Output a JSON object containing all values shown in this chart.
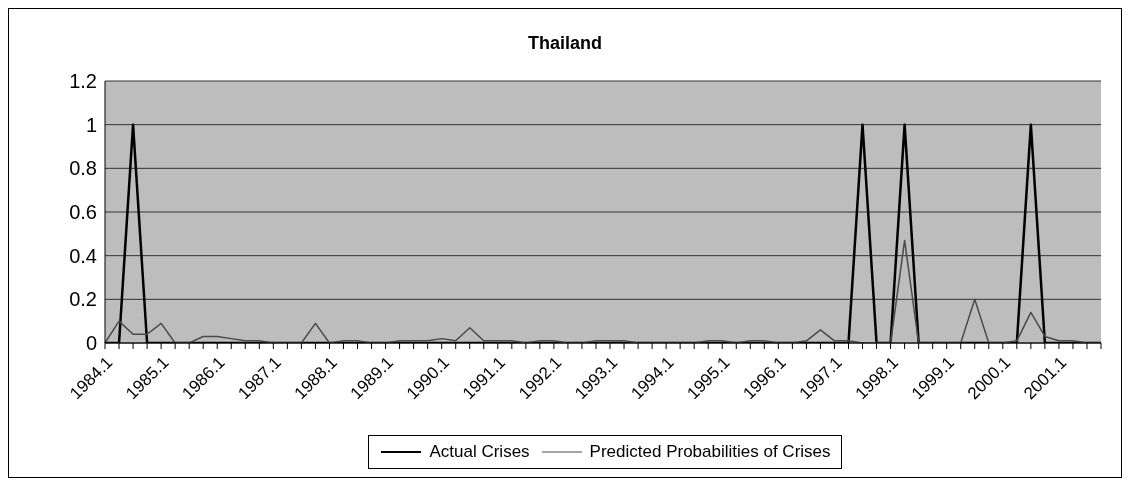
{
  "chart_data": {
    "type": "line",
    "title": "Thailand",
    "categories": [
      "1984.1",
      null,
      null,
      null,
      "1985.1",
      null,
      null,
      null,
      "1986.1",
      null,
      null,
      null,
      "1987.1",
      null,
      null,
      null,
      "1988.1",
      null,
      null,
      null,
      "1989.1",
      null,
      null,
      null,
      "1990.1",
      null,
      null,
      null,
      "1991.1",
      null,
      null,
      null,
      "1992.1",
      null,
      null,
      null,
      "1993.1",
      null,
      null,
      null,
      "1994.1",
      null,
      null,
      null,
      "1995.1",
      null,
      null,
      null,
      "1996.1",
      null,
      null,
      null,
      "1997.1",
      null,
      null,
      null,
      "1998.1",
      null,
      null,
      null,
      "1999.1",
      null,
      null,
      null,
      "2000.1",
      null,
      null,
      null,
      "2001.1",
      null,
      null,
      null
    ],
    "series": [
      {
        "name": "Actual Crises",
        "color": "#000000",
        "values": [
          0,
          0,
          1,
          0,
          0,
          0,
          0,
          0,
          0,
          0,
          0,
          0,
          0,
          0,
          0,
          0,
          0,
          0,
          0,
          0,
          0,
          0,
          0,
          0,
          0,
          0,
          0,
          0,
          0,
          0,
          0,
          0,
          0,
          0,
          0,
          0,
          0,
          0,
          0,
          0,
          0,
          0,
          0,
          0,
          0,
          0,
          0,
          0,
          0,
          0,
          0,
          0,
          0,
          0,
          1,
          0,
          0,
          1,
          0,
          0,
          0,
          0,
          0,
          0,
          0,
          0,
          1,
          0,
          0,
          0,
          0,
          0
        ]
      },
      {
        "name": "Predicted Probabilities of Crises",
        "color": "#4a4a4a",
        "values": [
          0,
          0.1,
          0.04,
          0.04,
          0.09,
          0,
          0,
          0.03,
          0.03,
          0.02,
          0.01,
          0.01,
          0,
          0,
          0,
          0.09,
          0,
          0.01,
          0.01,
          0,
          0,
          0.01,
          0.01,
          0.01,
          0.02,
          0.01,
          0.07,
          0.01,
          0.01,
          0.01,
          0,
          0.01,
          0.01,
          0,
          0,
          0.01,
          0.01,
          0.01,
          0,
          0,
          0,
          0,
          0,
          0.01,
          0.01,
          0,
          0.01,
          0.01,
          0,
          0,
          0.01,
          0.06,
          0.01,
          0.01,
          0,
          0,
          0,
          0.47,
          0,
          0,
          0,
          0,
          0.2,
          0,
          0,
          0.01,
          0.14,
          0.03,
          0.01,
          0.01,
          0,
          0
        ]
      }
    ],
    "ylim": [
      0,
      1.2
    ],
    "yticks": [
      0,
      0.2,
      0.4,
      0.6,
      0.8,
      1,
      1.2
    ],
    "grid": "y",
    "legend": "bottom",
    "marker": "none",
    "line_style": "solid"
  }
}
